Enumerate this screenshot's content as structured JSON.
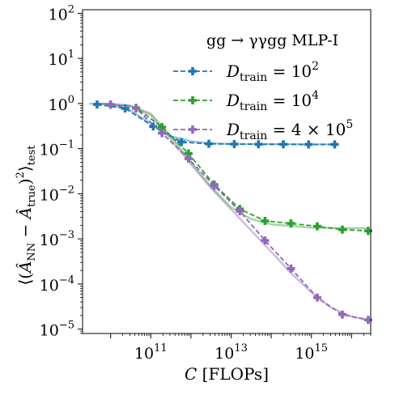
{
  "chart_data": {
    "type": "line",
    "title": "",
    "legend_title": "gg → γγgg MLP-I",
    "legend_placement": "top-right",
    "xlabel": "C [FLOPs]",
    "ylabel": "⟨(Â_NN − Â_true)²⟩_test",
    "xscale": "log",
    "yscale": "log",
    "xlim": [
      2000000000.0,
      3e+16
    ],
    "ylim": [
      8e-06,
      120.0
    ],
    "x_ticks": [
      {
        "value": 100000000000.0,
        "base": "10",
        "exp": "11"
      },
      {
        "value": 10000000000000.0,
        "base": "10",
        "exp": "13"
      },
      {
        "value": 1000000000000000.0,
        "base": "10",
        "exp": "15"
      }
    ],
    "y_ticks": [
      {
        "value": 100.0,
        "base": "10",
        "exp": "2"
      },
      {
        "value": 10.0,
        "base": "10",
        "exp": "1"
      },
      {
        "value": 1.0,
        "base": "10",
        "exp": "0"
      },
      {
        "value": 0.1,
        "base": "10",
        "exp": "−1"
      },
      {
        "value": 0.01,
        "base": "10",
        "exp": "−2"
      },
      {
        "value": 0.001,
        "base": "10",
        "exp": "−3"
      },
      {
        "value": 0.0001,
        "base": "10",
        "exp": "−4"
      },
      {
        "value": 1e-05,
        "base": "10",
        "exp": "−5"
      }
    ],
    "series": [
      {
        "name": "D_train = 10^2",
        "legend_main": "D",
        "legend_sub": "train",
        "legend_rest": " = 10",
        "legend_exp": "2",
        "color": "#1f77b4",
        "x": [
          4600000000.0,
          23000000000.0,
          115000000000.0,
          580000000000.0,
          2800000000000.0,
          12000000000000.0,
          48000000000000.0,
          200000000000000.0,
          850000000000000.0,
          3800000000000000.0
        ],
        "y": [
          0.95,
          0.78,
          0.31,
          0.14,
          0.128,
          0.126,
          0.125,
          0.125,
          0.124,
          0.124
        ],
        "fit_x": [
          3000000000.0,
          10000000000.0,
          30000000000.0,
          100000000000.0,
          300000000000.0,
          1000000000000.0,
          3000000000000.0,
          10000000000000.0,
          100000000000000.0,
          1000000000000000.0,
          4000000000000000.0
        ],
        "fit_y": [
          0.99,
          0.96,
          0.72,
          0.36,
          0.19,
          0.145,
          0.131,
          0.127,
          0.125,
          0.124,
          0.124
        ]
      },
      {
        "name": "D_train = 10^4",
        "legend_main": "D",
        "legend_sub": "train",
        "legend_rest": " = 10",
        "legend_exp": "4",
        "color": "#2ca02c",
        "x": [
          10000000000.0,
          43000000000.0,
          190000000000.0,
          870000000000.0,
          3800000000000.0,
          16500000000000.0,
          70000000000000.0,
          310000000000000.0,
          1400000000000000.0,
          5900000000000000.0,
          2.6e+16
        ],
        "y": [
          0.94,
          0.8,
          0.3,
          0.078,
          0.016,
          0.0046,
          0.0025,
          0.0022,
          0.0019,
          0.0016,
          0.0015
        ],
        "fit_x": [
          4000000000.0,
          10000000000.0,
          30000000000.0,
          100000000000.0,
          300000000000.0,
          1000000000000.0,
          3000000000000.0,
          10000000000000.0,
          30000000000000.0,
          100000000000000.0,
          1000000000000000.0,
          1e+16,
          2.6e+16
        ],
        "fit_y": [
          0.99,
          0.98,
          0.9,
          0.6,
          0.2,
          0.05,
          0.015,
          0.005,
          0.0028,
          0.0021,
          0.00178,
          0.00172,
          0.00171
        ]
      },
      {
        "name": "D_train = 4 × 10^5",
        "legend_main": "D",
        "legend_sub": "train",
        "legend_rest": " = 4 × 10",
        "legend_exp": "5",
        "color": "#9467bd",
        "x": [
          10000000000.0,
          43000000000.0,
          190000000000.0,
          870000000000.0,
          3800000000000.0,
          16500000000000.0,
          70000000000000.0,
          310000000000000.0,
          1400000000000000.0,
          5900000000000000.0,
          2.6e+16
        ],
        "y": [
          0.95,
          0.78,
          0.22,
          0.06,
          0.015,
          0.0041,
          0.00092,
          0.00022,
          5e-05,
          2.1e-05,
          1.6e-05
        ],
        "fit_x": [
          4000000000.0,
          10000000000.0,
          30000000000.0,
          100000000000.0,
          300000000000.0,
          1000000000000.0,
          3000000000000.0,
          10000000000000.0,
          30000000000000.0,
          100000000000000.0,
          300000000000000.0,
          1000000000000000.0,
          3000000000000000.0,
          1e+16,
          2.6e+16
        ],
        "fit_y": [
          0.99,
          0.98,
          0.9,
          0.55,
          0.17,
          0.045,
          0.014,
          0.0045,
          0.0016,
          0.00052,
          0.00018,
          6.5e-05,
          3e-05,
          1.9e-05,
          1.6e-05
        ]
      }
    ]
  }
}
